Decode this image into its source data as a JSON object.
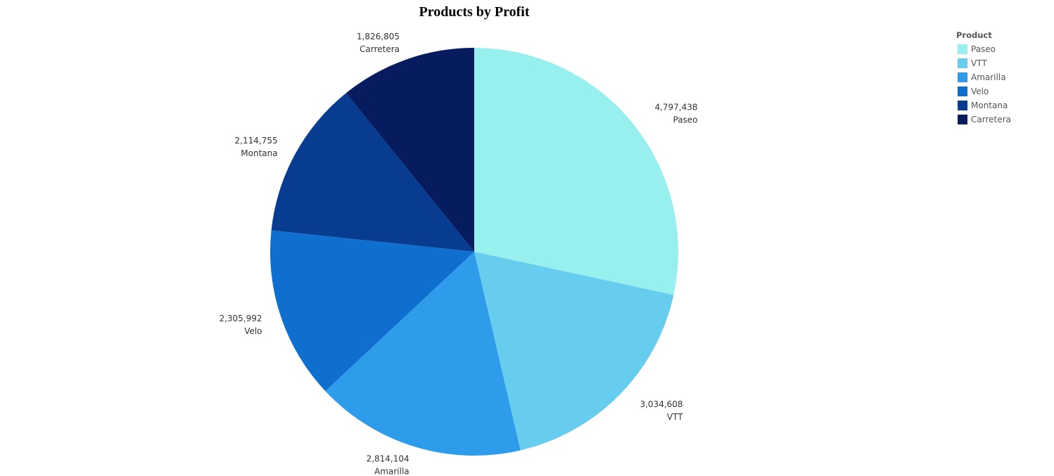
{
  "chart_data": {
    "type": "pie",
    "title": "Products by Profit",
    "legend_title": "Product",
    "legend_position": "top-right",
    "slices": [
      {
        "label": "Paseo",
        "value": 4797438,
        "value_label": "4,797,438",
        "color": "#98F0EE"
      },
      {
        "label": "VTT",
        "value": 3034608,
        "value_label": "3,034,608",
        "color": "#66CDEE"
      },
      {
        "label": "Amarilla",
        "value": 2814104,
        "value_label": "2,814,104",
        "color": "#2E9BEB"
      },
      {
        "label": "Velo",
        "value": 2305992,
        "value_label": "2,305,992",
        "color": "#0E6FCF"
      },
      {
        "label": "Montana",
        "value": 2114755,
        "value_label": "2,114,755",
        "color": "#083C90"
      },
      {
        "label": "Carretera",
        "value": 1826805,
        "value_label": "1,826,805",
        "color": "#061C5E"
      }
    ]
  }
}
